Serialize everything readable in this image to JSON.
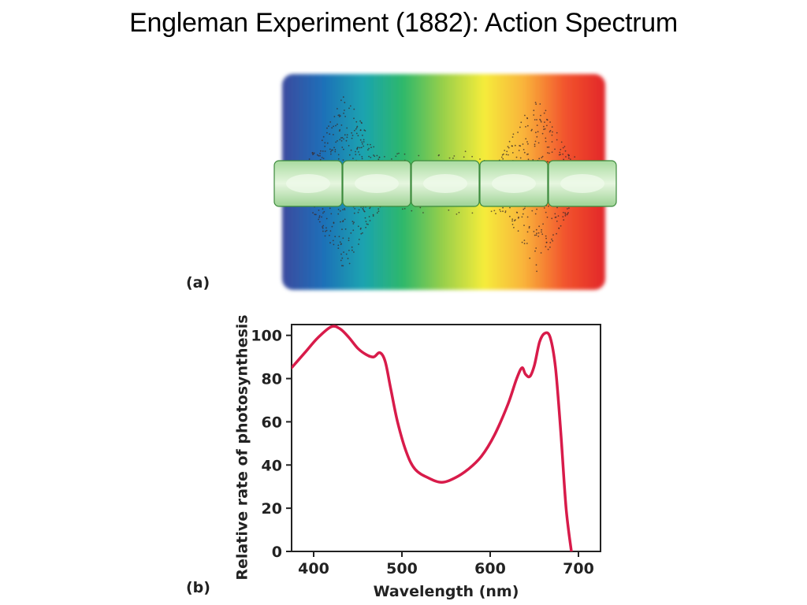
{
  "slide": {
    "title": "Engleman Experiment (1882):  Action Spectrum"
  },
  "panel_a": {
    "label": "(a)",
    "spectrum_colors": [
      "#3b4a9e",
      "#1f6fb8",
      "#1aa3b0",
      "#2fb86a",
      "#9ad04a",
      "#f5ec3a",
      "#f9b23a",
      "#f2542d",
      "#e2262a"
    ]
  },
  "panel_b": {
    "label": "(b)",
    "line_color": "#d81b4a"
  },
  "chart_data": {
    "type": "line",
    "title": "",
    "xlabel": "Wavelength (nm)",
    "ylabel": "Relative rate of photosynthesis",
    "xlim": [
      375,
      725
    ],
    "ylim": [
      0,
      105
    ],
    "xticks": [
      400,
      500,
      600,
      700
    ],
    "yticks": [
      0,
      20,
      40,
      60,
      80,
      100
    ],
    "grid": false,
    "series": [
      {
        "x": [
          375,
          390,
          405,
          420,
          430,
          440,
          450,
          460,
          468,
          475,
          481,
          487,
          495,
          505,
          515,
          530,
          545,
          560,
          575,
          590,
          605,
          620,
          630,
          636,
          640,
          645,
          650,
          656,
          662,
          668,
          674,
          680,
          686,
          692
        ],
        "y": [
          85,
          92,
          99,
          104,
          103,
          99,
          94,
          91,
          90,
          92,
          88,
          76,
          60,
          46,
          38,
          34,
          32,
          34,
          38,
          44,
          54,
          68,
          80,
          85,
          82,
          81,
          86,
          97,
          101,
          99,
          85,
          55,
          20,
          0
        ]
      }
    ]
  }
}
